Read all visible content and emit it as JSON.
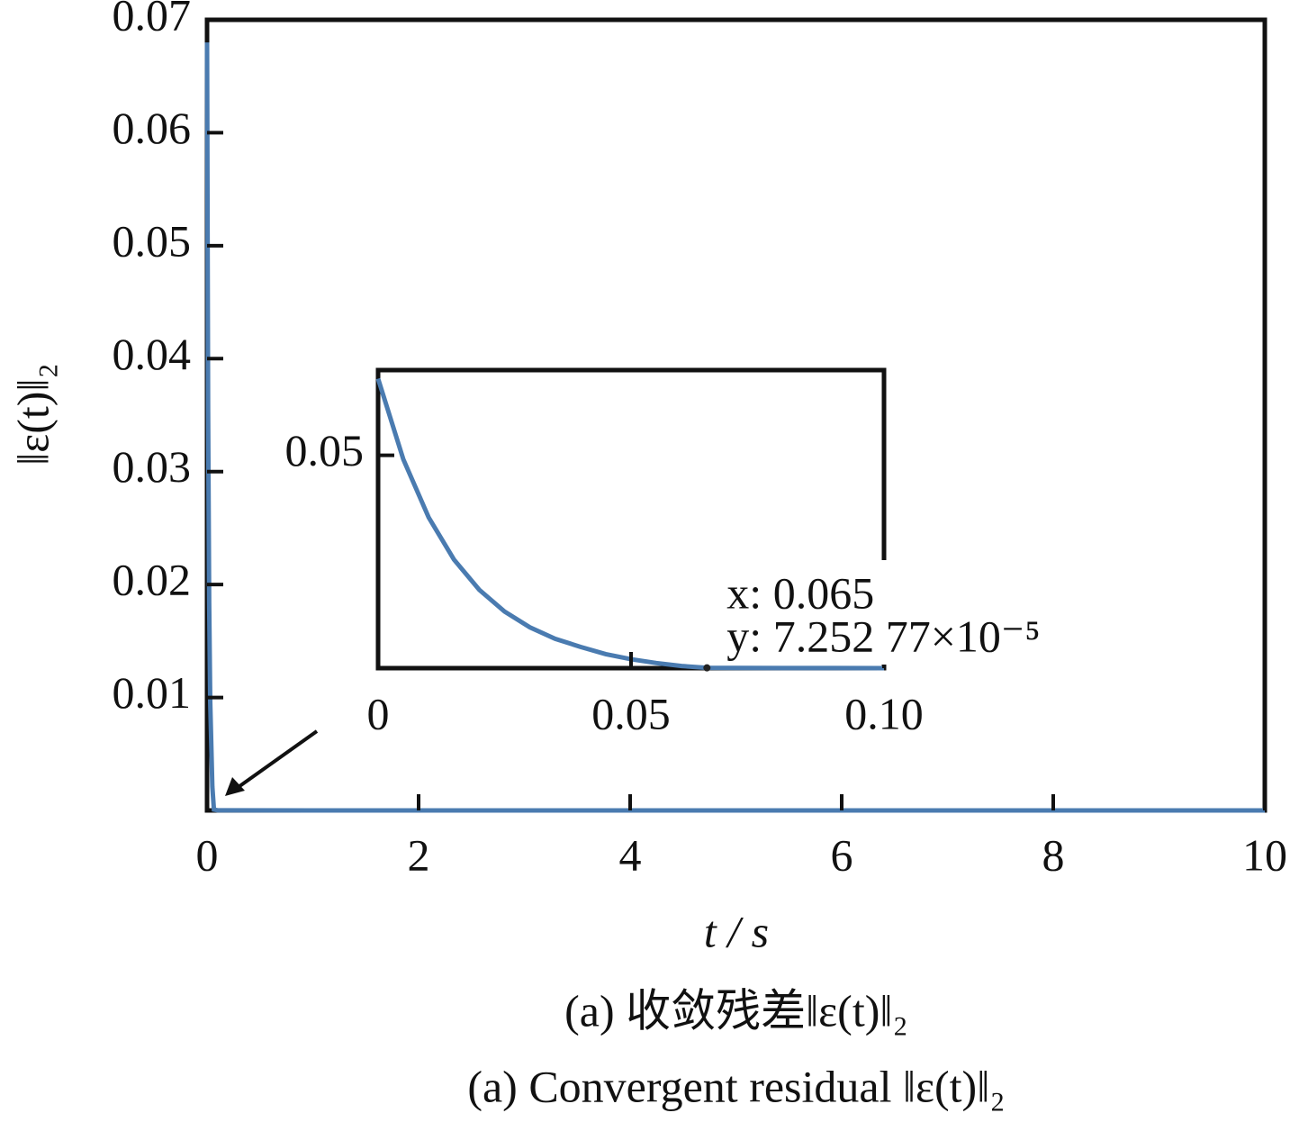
{
  "chart_data": [
    {
      "type": "line",
      "xlabel": "t / s",
      "ylabel": "‖ε(t)‖₂",
      "caption": [
        "(a)  收敛残差‖ε(t)‖₂",
        "(a)  Convergent residual ‖ε(t)‖₂"
      ],
      "x": [
        0,
        0.01,
        0.02,
        0.03,
        0.05,
        0.065,
        0.1,
        1,
        2,
        3,
        4,
        5,
        6,
        7,
        8,
        9,
        10
      ],
      "series": [
        {
          "color": "#4a7bb0",
          "values": [
            0.068,
            0.0354,
            0.0184,
            0.0096,
            0.0021,
            7.25e-05,
            1e-05,
            0,
            0,
            0,
            0,
            0,
            0,
            0,
            0,
            0,
            0
          ]
        }
      ],
      "xlim": [
        0,
        10
      ],
      "xticks": [
        0,
        2,
        4,
        6,
        8,
        10
      ],
      "ylim": [
        0,
        0.07
      ],
      "yticks": [
        0.01,
        0.02,
        0.03,
        0.04,
        0.05,
        0.06,
        0.07
      ]
    },
    {
      "type": "line",
      "x": [
        0,
        0.005,
        0.01,
        0.015,
        0.02,
        0.025,
        0.03,
        0.035,
        0.04,
        0.045,
        0.05,
        0.055,
        0.06,
        0.065,
        0.07,
        0.08,
        0.09,
        0.1
      ],
      "series": [
        {
          "color": "#4a7bb0",
          "values": [
            0.068,
            0.049,
            0.0354,
            0.0255,
            0.0184,
            0.0133,
            0.0096,
            0.0069,
            0.005,
            0.0033,
            0.0021,
            0.0012,
            0.0005,
            7.25e-05,
            5e-05,
            3e-05,
            2e-05,
            1e-05
          ]
        }
      ],
      "xlim": [
        0,
        0.1
      ],
      "xticks": [
        0,
        0.05,
        {
          "value": 0.1,
          "label": "0.10"
        }
      ],
      "ylim": [
        0,
        0.07
      ],
      "yticks": [
        0.05
      ],
      "datatip": {
        "x": 0.065,
        "y": 7.25277e-05,
        "x_label": "x: 0.065",
        "y_label": "y: 7.252 77×10⁻⁵"
      }
    }
  ]
}
